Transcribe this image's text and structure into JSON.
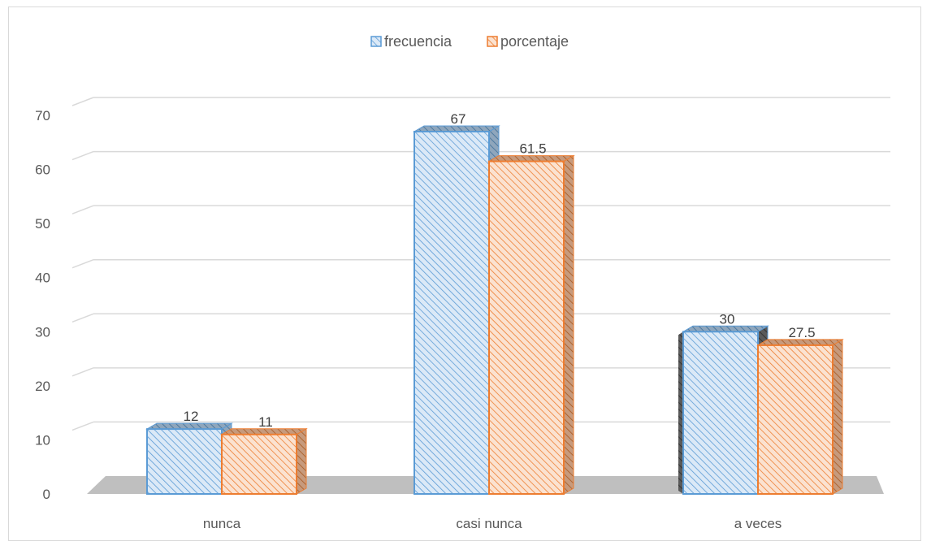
{
  "chart_data": {
    "type": "bar",
    "style": "3d-clustered-column",
    "categories": [
      "nunca",
      "casi nunca",
      "a veces"
    ],
    "series": [
      {
        "name": "frecuencia",
        "values": [
          12,
          67,
          30
        ],
        "labels": [
          "12",
          "67",
          "30"
        ],
        "color": "#5b9bd5",
        "fill": "#dbe9f7"
      },
      {
        "name": "porcentaje",
        "values": [
          11,
          61.5,
          27.5
        ],
        "labels": [
          "11",
          "61.5",
          "27.5"
        ],
        "color": "#ed7d31",
        "fill": "#fbe2d0"
      }
    ],
    "ylim": [
      0,
      70
    ],
    "yticks": [
      "0",
      "10",
      "20",
      "30",
      "40",
      "50",
      "60",
      "70"
    ],
    "grid": true,
    "legend_position": "top-center",
    "title": "",
    "xlabel": "",
    "ylabel": ""
  }
}
